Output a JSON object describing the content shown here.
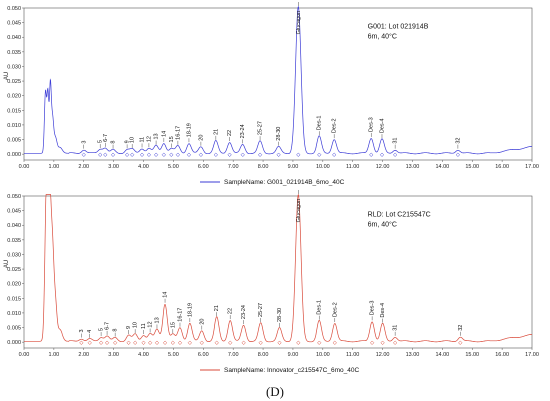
{
  "panel_label": "(D)",
  "chart_data": [
    {
      "type": "line",
      "ylabel": "AU",
      "xlim": [
        0.0,
        17.0
      ],
      "ylim": [
        -0.002,
        0.05
      ],
      "x_ticks": [
        "0.00",
        "1.00",
        "2.00",
        "3.00",
        "4.00",
        "5.00",
        "6.00",
        "7.00",
        "8.00",
        "9.00",
        "10.00",
        "11.00",
        "12.00",
        "13.00",
        "14.00",
        "15.00",
        "16.00",
        "17.00"
      ],
      "y_ticks": [
        "0.000",
        "0.005",
        "0.010",
        "0.015",
        "0.020",
        "0.025",
        "0.030",
        "0.035",
        "0.040",
        "0.045",
        "0.050"
      ],
      "lot_line1": "G001: Lot 021914B",
      "lot_line2": "6m, 40°C",
      "legend": "SampleName: G001_021914B_6mo_40C",
      "color": "#3b3bd6",
      "peaks": [
        {
          "label": "3",
          "x": 2.0,
          "y": 0.0012
        },
        {
          "label": "5",
          "x": 2.55,
          "y": 0.0014
        },
        {
          "label": "6-7",
          "x": 2.72,
          "y": 0.0018
        },
        {
          "label": "8",
          "x": 2.98,
          "y": 0.0012
        },
        {
          "label": "9",
          "x": 3.45,
          "y": 0.0013
        },
        {
          "label": "10",
          "x": 3.62,
          "y": 0.0014
        },
        {
          "label": "11",
          "x": 3.95,
          "y": 0.0016
        },
        {
          "label": "12",
          "x": 4.18,
          "y": 0.0017
        },
        {
          "label": "13",
          "x": 4.42,
          "y": 0.0026
        },
        {
          "label": "14",
          "x": 4.68,
          "y": 0.0035
        },
        {
          "label": "15",
          "x": 4.93,
          "y": 0.0016
        },
        {
          "label": "16-17",
          "x": 5.15,
          "y": 0.0025
        },
        {
          "label": "18-19",
          "x": 5.52,
          "y": 0.0034
        },
        {
          "label": "20",
          "x": 5.92,
          "y": 0.0022
        },
        {
          "label": "21",
          "x": 6.42,
          "y": 0.0042
        },
        {
          "label": "22",
          "x": 6.88,
          "y": 0.0038
        },
        {
          "label": "23-24",
          "x": 7.32,
          "y": 0.003
        },
        {
          "label": "25-27",
          "x": 7.9,
          "y": 0.0041
        },
        {
          "label": "28-30",
          "x": 8.52,
          "y": 0.0022
        },
        {
          "label": "Glucagon",
          "x": 9.18,
          "y": 0.05
        },
        {
          "label": "Des-1",
          "x": 9.88,
          "y": 0.0058
        },
        {
          "label": "Des-2",
          "x": 10.38,
          "y": 0.0048
        },
        {
          "label": "Des-3",
          "x": 11.62,
          "y": 0.0052
        },
        {
          "label": "Des-4",
          "x": 11.98,
          "y": 0.0048
        },
        {
          "label": "31",
          "x": 12.42,
          "y": 0.0012
        },
        {
          "label": "32",
          "x": 14.52,
          "y": 0.0012
        }
      ]
    },
    {
      "type": "line",
      "ylabel": "AU",
      "xlim": [
        0.0,
        17.0
      ],
      "ylim": [
        -0.002,
        0.05
      ],
      "x_ticks": [
        "0.00",
        "1.00",
        "2.00",
        "3.00",
        "4.00",
        "5.00",
        "6.00",
        "7.00",
        "8.00",
        "9.00",
        "10.00",
        "11.00",
        "12.00",
        "13.00",
        "14.00",
        "15.00",
        "16.00",
        "17.00"
      ],
      "y_ticks": [
        "0.000",
        "0.005",
        "0.010",
        "0.015",
        "0.020",
        "0.025",
        "0.030",
        "0.035",
        "0.040",
        "0.045",
        "0.050"
      ],
      "lot_line1": "RLD: Lot C215547C",
      "lot_line2": "6m, 40°C",
      "legend": "SampleName: Innovator_c215547C_6mo_40C",
      "color": "#d94a3a",
      "peaks": [
        {
          "label": "3",
          "x": 1.92,
          "y": 0.0009
        },
        {
          "label": "4",
          "x": 2.2,
          "y": 0.0008
        },
        {
          "label": "5",
          "x": 2.58,
          "y": 0.0014
        },
        {
          "label": "6-7",
          "x": 2.78,
          "y": 0.0018
        },
        {
          "label": "8",
          "x": 3.05,
          "y": 0.0012
        },
        {
          "label": "9",
          "x": 3.5,
          "y": 0.0021
        },
        {
          "label": "10",
          "x": 3.72,
          "y": 0.0024
        },
        {
          "label": "11",
          "x": 4.0,
          "y": 0.0021
        },
        {
          "label": "12",
          "x": 4.22,
          "y": 0.0026
        },
        {
          "label": "13",
          "x": 4.45,
          "y": 0.004
        },
        {
          "label": "14",
          "x": 4.72,
          "y": 0.0128
        },
        {
          "label": "15",
          "x": 4.98,
          "y": 0.0024
        },
        {
          "label": "16-17",
          "x": 5.22,
          "y": 0.0046
        },
        {
          "label": "18-19",
          "x": 5.55,
          "y": 0.0062
        },
        {
          "label": "20",
          "x": 5.95,
          "y": 0.0036
        },
        {
          "label": "21",
          "x": 6.45,
          "y": 0.0082
        },
        {
          "label": "22",
          "x": 6.9,
          "y": 0.0072
        },
        {
          "label": "23-24",
          "x": 7.35,
          "y": 0.0055
        },
        {
          "label": "25-27",
          "x": 7.92,
          "y": 0.0062
        },
        {
          "label": "28-30",
          "x": 8.55,
          "y": 0.0045
        },
        {
          "label": "Glucagon",
          "x": 9.18,
          "y": 0.05
        },
        {
          "label": "Des-1",
          "x": 9.88,
          "y": 0.007
        },
        {
          "label": "Des-2",
          "x": 10.4,
          "y": 0.0062
        },
        {
          "label": "Des-3",
          "x": 11.65,
          "y": 0.0068
        },
        {
          "label": "Des-4",
          "x": 12.0,
          "y": 0.006
        },
        {
          "label": "31",
          "x": 12.42,
          "y": 0.0015
        },
        {
          "label": "32",
          "x": 14.6,
          "y": 0.0015
        }
      ]
    }
  ]
}
